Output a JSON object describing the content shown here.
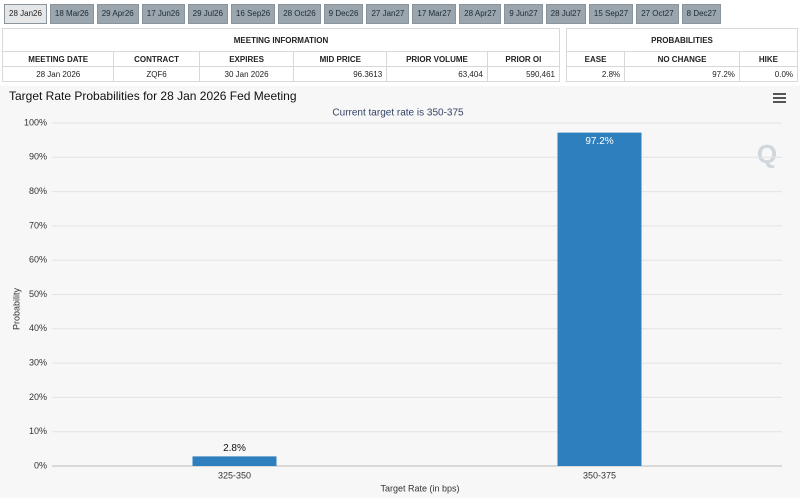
{
  "tabs": [
    "28 Jan26",
    "18 Mar26",
    "29 Apr26",
    "17 Jun26",
    "29 Jul26",
    "16 Sep26",
    "28 Oct26",
    "9 Dec26",
    "27 Jan27",
    "17 Mar27",
    "28 Apr27",
    "9 Jun27",
    "28 Jul27",
    "15 Sep27",
    "27 Oct27",
    "8 Dec27"
  ],
  "meeting_table": {
    "title": "MEETING INFORMATION",
    "columns": [
      "MEETING DATE",
      "CONTRACT",
      "EXPIRES",
      "MID PRICE",
      "PRIOR VOLUME",
      "PRIOR OI"
    ],
    "rows": [
      [
        "28 Jan 2026",
        "ZQF6",
        "30 Jan 2026",
        "96.3613",
        "63,404",
        "590,461"
      ]
    ]
  },
  "probability_table": {
    "title": "PROBABILITIES",
    "columns": [
      "EASE",
      "NO CHANGE",
      "HIKE"
    ],
    "rows": [
      [
        "2.8%",
        "97.2%",
        "0.0%"
      ]
    ]
  },
  "chart_data": {
    "type": "bar",
    "title": "Target Rate Probabilities for 28 Jan 2026 Fed Meeting",
    "subtitle": "Current target rate is 350-375",
    "x_label": "Target Rate (in bps)",
    "y_label": "Probability",
    "categories": [
      "325-350",
      "350-375"
    ],
    "values": [
      2.8,
      97.2
    ],
    "value_labels": [
      "2.8%",
      "97.2%"
    ],
    "color": "#2e7fbd",
    "ylim": [
      0,
      100
    ],
    "yticks": [
      {
        "value": 0,
        "label": "0%"
      },
      {
        "value": 10,
        "label": "10%"
      },
      {
        "value": 20,
        "label": "20%"
      },
      {
        "value": 30,
        "label": "30%"
      },
      {
        "value": 40,
        "label": "40%"
      },
      {
        "value": 50,
        "label": "50%"
      },
      {
        "value": 60,
        "label": "60%"
      },
      {
        "value": 70,
        "label": "70%"
      },
      {
        "value": 80,
        "label": "80%"
      },
      {
        "value": 90,
        "label": "90%"
      },
      {
        "value": 100,
        "label": "100%"
      }
    ],
    "grid": true
  }
}
